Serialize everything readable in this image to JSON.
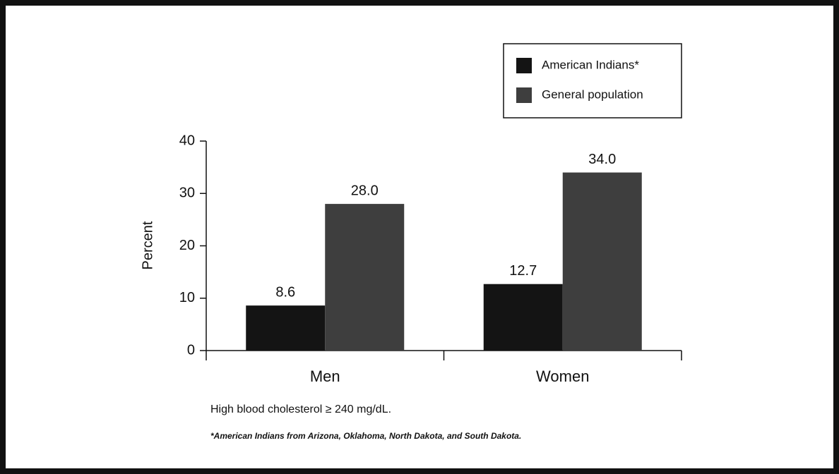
{
  "chart_data": {
    "type": "bar",
    "ylabel": "Percent",
    "categories": [
      "Men",
      "Women"
    ],
    "series": [
      {
        "name": "American Indians*",
        "color": "#141414",
        "values": [
          8.6,
          12.7
        ],
        "value_labels": [
          "8.6",
          "12.7"
        ]
      },
      {
        "name": "General population",
        "color": "#3e3e3e",
        "values": [
          28.0,
          34.0
        ],
        "value_labels": [
          "28.0",
          "34.0"
        ]
      }
    ],
    "ylim": [
      0,
      40
    ],
    "yticks": [
      0,
      10,
      20,
      30,
      40
    ],
    "legend": "top-right",
    "notes": [
      "High blood cholesterol ≥ 240 mg/dL.",
      "*American Indians from Arizona, Oklahoma, North Dakota, and South Dakota."
    ]
  }
}
